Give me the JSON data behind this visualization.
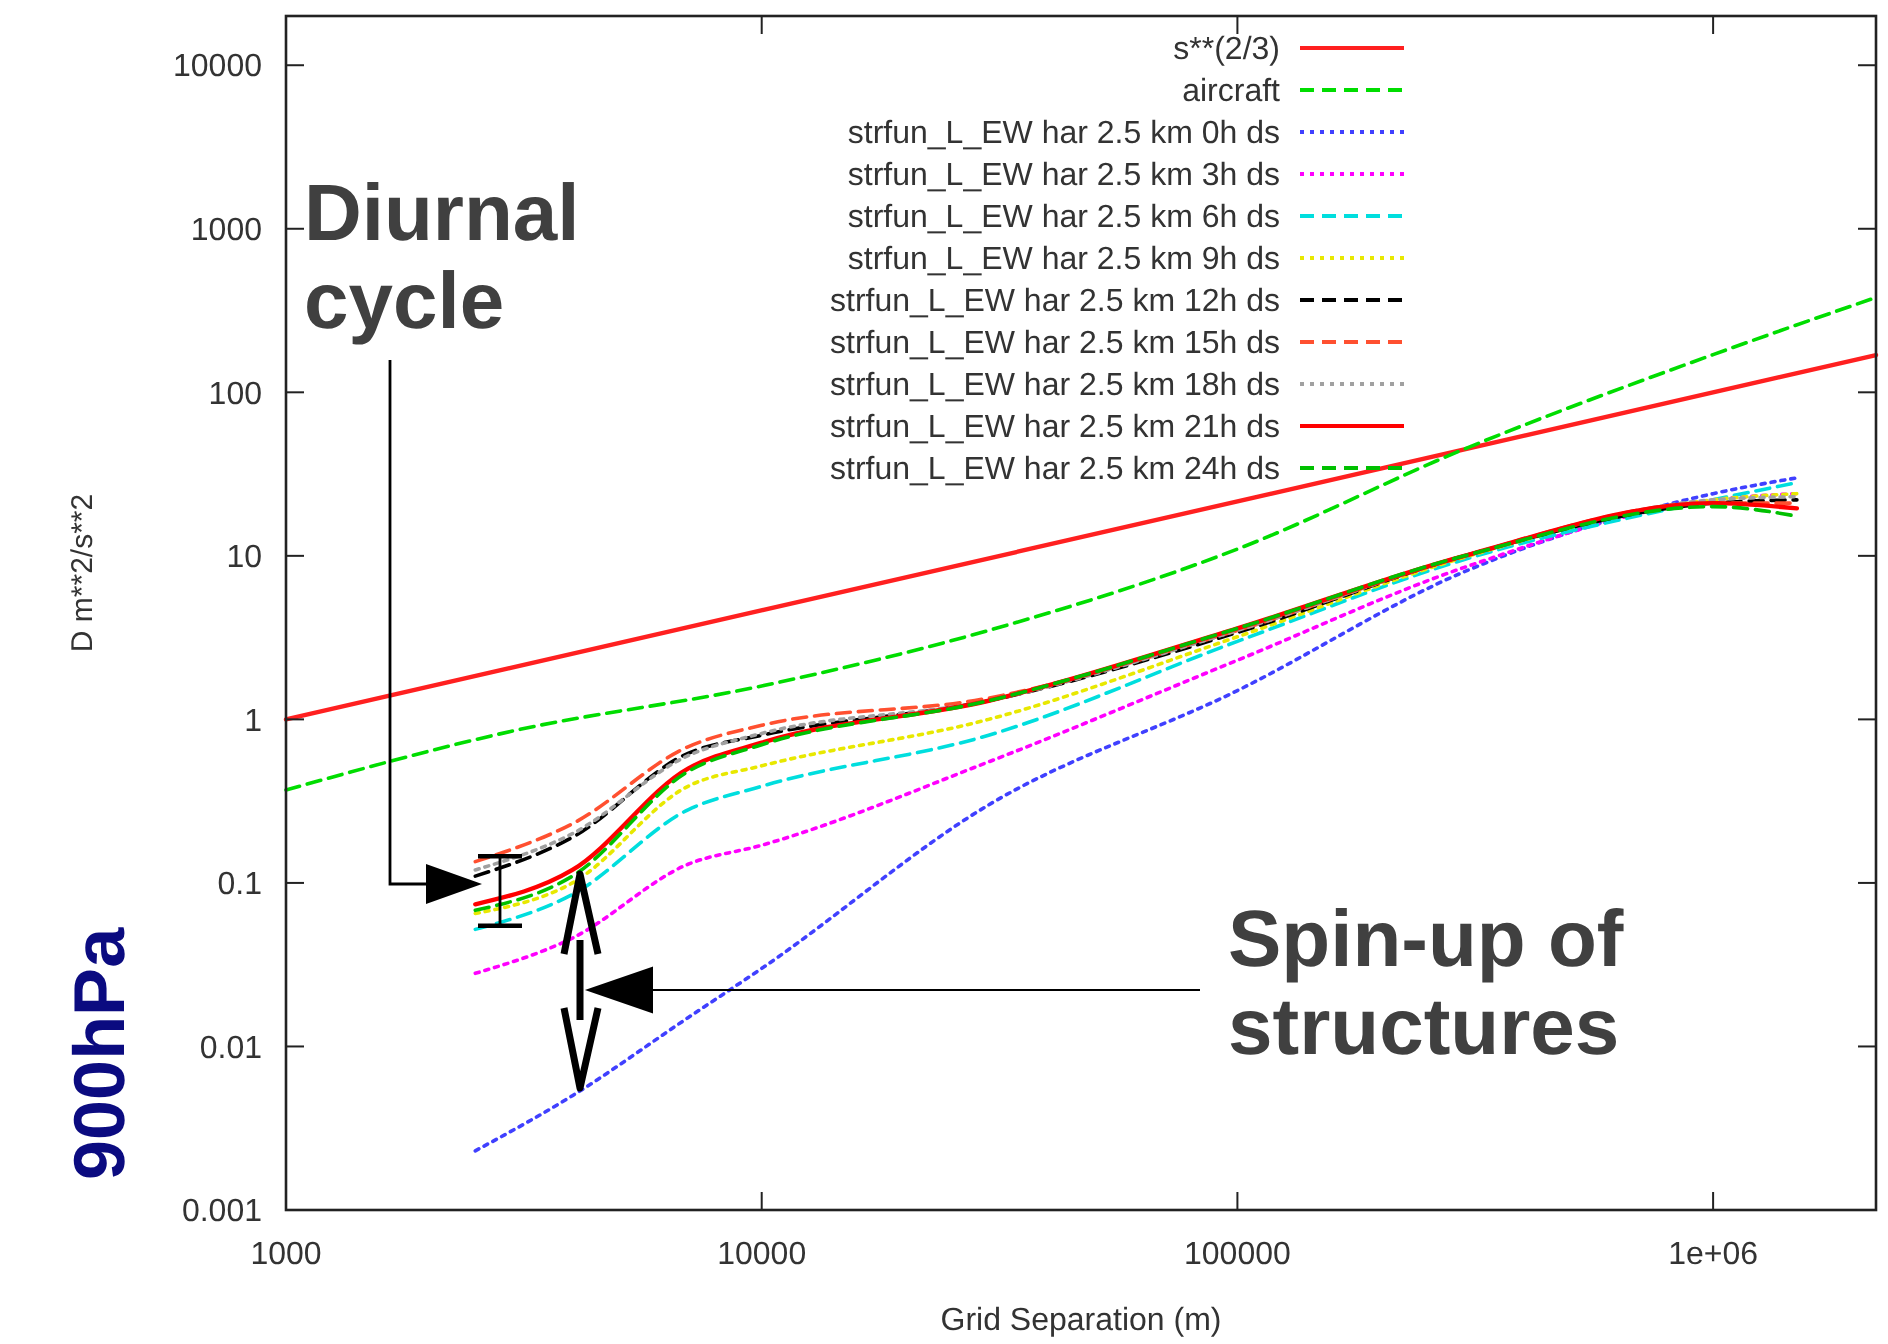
{
  "chart_data": {
    "type": "line",
    "xlabel": "Grid Separation (m)",
    "ylabel": "D m**2/s**2",
    "log": "xy",
    "xlim": [
      1000,
      2200000
    ],
    "ylim": [
      0.001,
      20000
    ],
    "xticks": [
      1000,
      10000,
      100000,
      {
        "value": 1000000,
        "label": "1e+06"
      }
    ],
    "yticks": [
      0.001,
      0.01,
      0.1,
      1,
      10,
      100,
      1000,
      10000
    ],
    "grid": false,
    "legend": "top",
    "marker": "none",
    "annotations": [
      "Diurnal cycle",
      "Spin-up of structures",
      "900hPa"
    ],
    "series": [
      {
        "name": "s**(2/3)",
        "color": "#ff2020",
        "line_style": "solid",
        "x": [
          1000,
          2200000
        ],
        "values": [
          1,
          169
        ]
      },
      {
        "name": "aircraft",
        "color": "#00dd00",
        "line_style": "dashed",
        "x": [
          1000,
          3000,
          10000,
          30000,
          100000,
          300000,
          1000000,
          2200000
        ],
        "values": [
          0.37,
          0.85,
          1.6,
          3.5,
          11,
          45,
          170,
          380
        ]
      },
      {
        "name": "strfun_L_EW har 2.5 km 0h ds",
        "color": "#4040ff",
        "line_style": "dotted",
        "x": [
          2500,
          4000,
          7000,
          10000,
          30000,
          100000,
          300000,
          1000000,
          1500000
        ],
        "values": [
          0.0023,
          0.005,
          0.015,
          0.03,
          0.3,
          1.5,
          8,
          24,
          30
        ]
      },
      {
        "name": "strfun_L_EW har 2.5 km 3h ds",
        "color": "#ff00ff",
        "line_style": "dotted",
        "x": [
          2500,
          4000,
          7000,
          10000,
          30000,
          100000,
          300000,
          1000000,
          1500000
        ],
        "values": [
          0.028,
          0.046,
          0.13,
          0.17,
          0.55,
          2.3,
          8.5,
          22,
          24
        ]
      },
      {
        "name": "strfun_L_EW har 2.5 km 6h ds",
        "color": "#00dede",
        "line_style": "dashed",
        "x": [
          2500,
          4000,
          7000,
          10000,
          30000,
          100000,
          300000,
          1000000,
          1500000
        ],
        "values": [
          0.052,
          0.085,
          0.28,
          0.39,
          0.8,
          3,
          9.5,
          22,
          28
        ]
      },
      {
        "name": "strfun_L_EW har 2.5 km 9h ds",
        "color": "#e8e800",
        "line_style": "dotted",
        "x": [
          2500,
          4000,
          7000,
          10000,
          30000,
          100000,
          300000,
          1000000,
          1500000
        ],
        "values": [
          0.065,
          0.1,
          0.39,
          0.52,
          1,
          3.2,
          9.8,
          22,
          24
        ]
      },
      {
        "name": "strfun_L_EW har 2.5 km 12h ds",
        "color": "#000000",
        "line_style": "dashed",
        "x": [
          2500,
          4000,
          7000,
          10000,
          30000,
          100000,
          300000,
          1000000,
          1500000
        ],
        "values": [
          0.11,
          0.19,
          0.62,
          0.8,
          1.3,
          3.4,
          10,
          21,
          22
        ]
      },
      {
        "name": "strfun_L_EW har 2.5 km 15h ds",
        "color": "#ff5030",
        "line_style": "dashed",
        "x": [
          2500,
          4000,
          7000,
          10000,
          30000,
          100000,
          300000,
          1000000,
          1500000
        ],
        "values": [
          0.135,
          0.23,
          0.68,
          0.92,
          1.35,
          3.5,
          10,
          21,
          21
        ]
      },
      {
        "name": "strfun_L_EW har 2.5 km 18h ds",
        "color": "#a0a0a0",
        "line_style": "dotted",
        "x": [
          2500,
          4000,
          7000,
          10000,
          30000,
          100000,
          300000,
          1000000,
          1500000
        ],
        "values": [
          0.12,
          0.2,
          0.6,
          0.82,
          1.3,
          3.5,
          10,
          22,
          23
        ]
      },
      {
        "name": "strfun_L_EW har 2.5 km 21h ds",
        "color": "#ff0000",
        "line_style": "solid",
        "x": [
          2500,
          4000,
          7000,
          10000,
          30000,
          100000,
          300000,
          1000000,
          1500000
        ],
        "values": [
          0.074,
          0.12,
          0.5,
          0.72,
          1.3,
          3.6,
          10,
          21,
          19.5
        ]
      },
      {
        "name": "strfun_L_EW har 2.5 km 24h ds",
        "color": "#00c000",
        "line_style": "dashed",
        "x": [
          2500,
          4000,
          7000,
          10000,
          30000,
          100000,
          300000,
          1000000,
          1500000
        ],
        "values": [
          0.068,
          0.11,
          0.48,
          0.7,
          1.3,
          3.6,
          10,
          20,
          17.5
        ]
      }
    ]
  }
}
